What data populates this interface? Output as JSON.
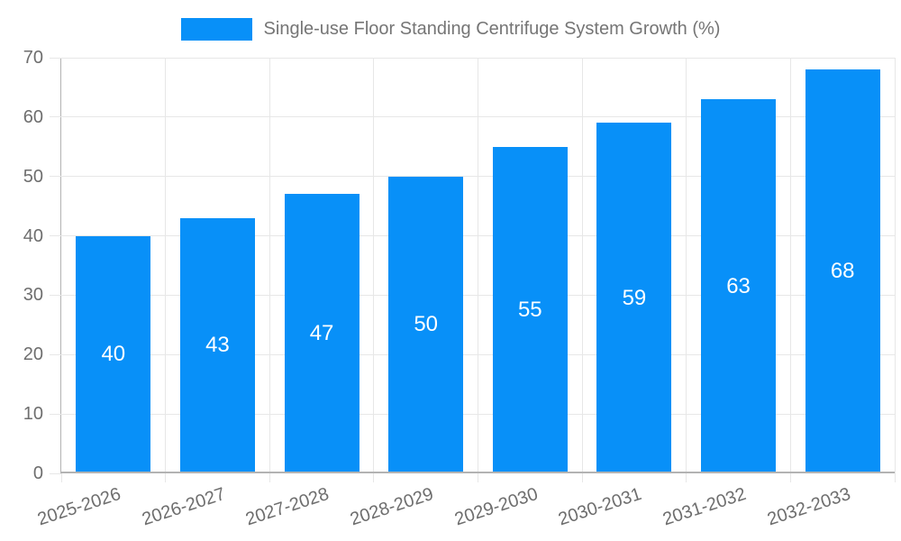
{
  "chart_data": {
    "type": "bar",
    "title": "Single-use Floor Standing Centrifuge System Growth (%)",
    "categories": [
      "2025-2026",
      "2026-2027",
      "2027-2028",
      "2028-2029",
      "2029-2030",
      "2030-2031",
      "2031-2032",
      "2032-2033"
    ],
    "values": [
      40,
      43,
      47,
      50,
      55,
      59,
      63,
      68
    ],
    "xlabel": "",
    "ylabel": "",
    "ylim": [
      0,
      70
    ],
    "yticks": [
      0,
      10,
      20,
      30,
      40,
      50,
      60,
      70
    ],
    "grid": true,
    "legend_position": "top",
    "bar_value_labels": [
      "40",
      "43",
      "47",
      "50",
      "55",
      "59",
      "63",
      "68"
    ],
    "colors": {
      "bar": "#0890F8",
      "value_label": "#FFFFFF",
      "grid": "#E7E7E7",
      "axis": "#B3B3B3",
      "tick_label": "#6E6E6E",
      "legend_text": "#757575"
    }
  }
}
